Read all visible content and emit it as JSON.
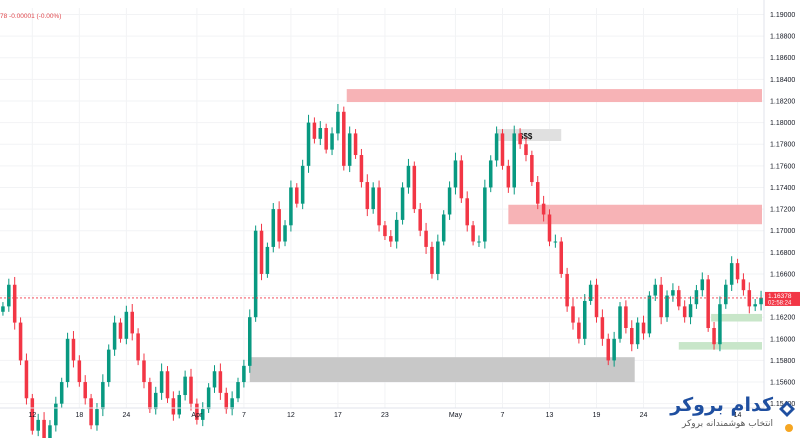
{
  "legend": {
    "text": "78  -0.00001 (-0.00%)"
  },
  "chart_data": {
    "type": "candlestick",
    "y_ticks": [
      "1.19000",
      "1.18800",
      "1.18600",
      "1.18400",
      "1.18200",
      "1.18000",
      "1.17800",
      "1.17600",
      "1.17400",
      "1.17200",
      "1.17000",
      "1.16800",
      "1.16600",
      "1.16400",
      "1.16200",
      "1.16000",
      "1.15800",
      "1.15600",
      "1.15400"
    ],
    "ylim": [
      1.1536,
      1.1906
    ],
    "x_ticks": [
      {
        "label": "12",
        "idx": 5
      },
      {
        "label": "18",
        "idx": 13
      },
      {
        "label": "24",
        "idx": 21
      },
      {
        "label": "Apr",
        "idx": 33
      },
      {
        "label": "7",
        "idx": 41
      },
      {
        "label": "12",
        "idx": 49
      },
      {
        "label": "17",
        "idx": 57
      },
      {
        "label": "23",
        "idx": 65
      },
      {
        "label": "May",
        "idx": 77
      },
      {
        "label": "7",
        "idx": 85
      },
      {
        "label": "13",
        "idx": 93
      },
      {
        "label": "19",
        "idx": 101
      },
      {
        "label": "24",
        "idx": 109
      },
      {
        "label": "14",
        "idx": 125
      }
    ],
    "last_price": {
      "value": 1.16378,
      "label": "1.16378",
      "countdown": "02:58:24"
    },
    "zones": [
      {
        "color": "#f7b3b6",
        "y_top": 1.1831,
        "y_bottom": 1.1819,
        "x_start": 58.5,
        "x_end": 134
      },
      {
        "color": "#e0e0e0",
        "y_top": 1.1794,
        "y_bottom": 1.1783,
        "x_start": 84,
        "x_end": 95,
        "label": "$$$"
      },
      {
        "color": "#f7b3b6",
        "y_top": 1.1724,
        "y_bottom": 1.1706,
        "x_start": 86,
        "x_end": 134
      },
      {
        "color": "#c8c8c8",
        "y_top": 1.1583,
        "y_bottom": 1.156,
        "x_start": 42,
        "x_end": 107.5
      },
      {
        "color": "#c8e6c9",
        "y_top": 1.1623,
        "y_bottom": 1.1616,
        "x_start": 120.5,
        "x_end": 134
      },
      {
        "color": "#c8e6c9",
        "y_top": 1.1597,
        "y_bottom": 1.159,
        "x_start": 115,
        "x_end": 134
      }
    ],
    "closes": [
      1.163,
      1.165,
      1.1615,
      1.158,
      1.1545,
      1.1515,
      1.1525,
      1.1508,
      1.152,
      1.154,
      1.156,
      1.16,
      1.158,
      1.156,
      1.1545,
      1.152,
      1.1535,
      1.156,
      1.159,
      1.1615,
      1.16,
      1.1625,
      1.1605,
      1.158,
      1.156,
      1.1535,
      1.155,
      1.157,
      1.1545,
      1.153,
      1.1548,
      1.1565,
      1.154,
      1.1525,
      1.1535,
      1.1555,
      1.157,
      1.155,
      1.1535,
      1.1545,
      1.156,
      1.1575,
      1.162,
      1.17,
      1.166,
      1.1685,
      1.172,
      1.169,
      1.1705,
      1.174,
      1.1725,
      1.176,
      1.18,
      1.1785,
      1.1795,
      1.1775,
      1.179,
      1.181,
      1.176,
      1.179,
      1.177,
      1.1745,
      1.172,
      1.174,
      1.1705,
      1.1695,
      1.169,
      1.171,
      1.174,
      1.176,
      1.172,
      1.17,
      1.1685,
      1.166,
      1.169,
      1.1715,
      1.174,
      1.1765,
      1.173,
      1.1705,
      1.169,
      1.169,
      1.174,
      1.1765,
      1.179,
      1.176,
      1.174,
      1.179,
      1.178,
      1.177,
      1.1745,
      1.1725,
      1.1715,
      1.169,
      1.169,
      1.166,
      1.163,
      1.1615,
      1.16,
      1.1635,
      1.165,
      1.162,
      1.16,
      1.158,
      1.16,
      1.163,
      1.161,
      1.1595,
      1.1615,
      1.1605,
      1.164,
      1.165,
      1.162,
      1.164,
      1.1645,
      1.163,
      1.162,
      1.1632,
      1.1645,
      1.1655,
      1.161,
      1.1595,
      1.1632,
      1.165,
      1.167,
      1.1655,
      1.1645,
      1.163,
      1.1632,
      1.1638
    ]
  },
  "logo": {
    "main": "کدام بروکر",
    "sub": "انتخاب هوشمندانه بروکر"
  }
}
